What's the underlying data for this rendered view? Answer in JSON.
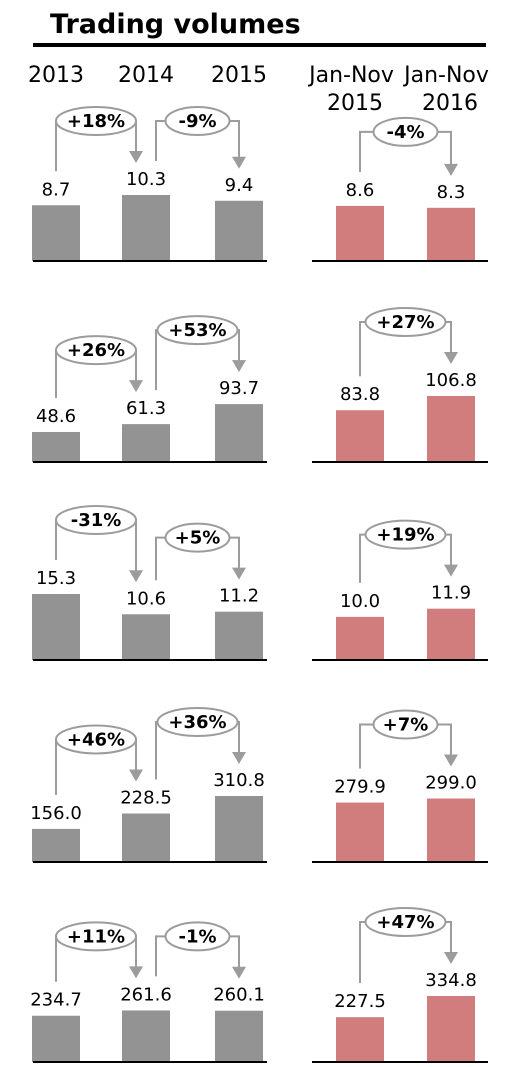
{
  "title": "Trading volumes",
  "colors": {
    "annual": "#939393",
    "ytd": "#d27d7d",
    "connector": "#9c9c9c",
    "axis": "#000000"
  },
  "chart_data": {
    "type": "bar",
    "categories": [
      "2013",
      "2014",
      "2015",
      "Jan-Nov 2015",
      "Jan-Nov 2016"
    ],
    "panels": [
      {
        "values": [
          8.7,
          10.3,
          9.4,
          8.6,
          8.3
        ],
        "changes": [
          "+18%",
          "-9%",
          "-4%"
        ]
      },
      {
        "values": [
          48.6,
          61.3,
          93.7,
          83.8,
          106.8
        ],
        "changes": [
          "+26%",
          "+53%",
          "+27%"
        ]
      },
      {
        "values": [
          15.3,
          10.6,
          11.2,
          10.0,
          11.9
        ],
        "changes": [
          "-31%",
          "+5%",
          "+19%"
        ]
      },
      {
        "values": [
          156.0,
          228.5,
          310.8,
          279.9,
          299.0
        ],
        "changes": [
          "+46%",
          "+36%",
          "+7%"
        ]
      },
      {
        "values": [
          234.7,
          261.6,
          260.1,
          227.5,
          334.8
        ],
        "changes": [
          "+11%",
          "-1%",
          "+47%"
        ]
      }
    ]
  }
}
